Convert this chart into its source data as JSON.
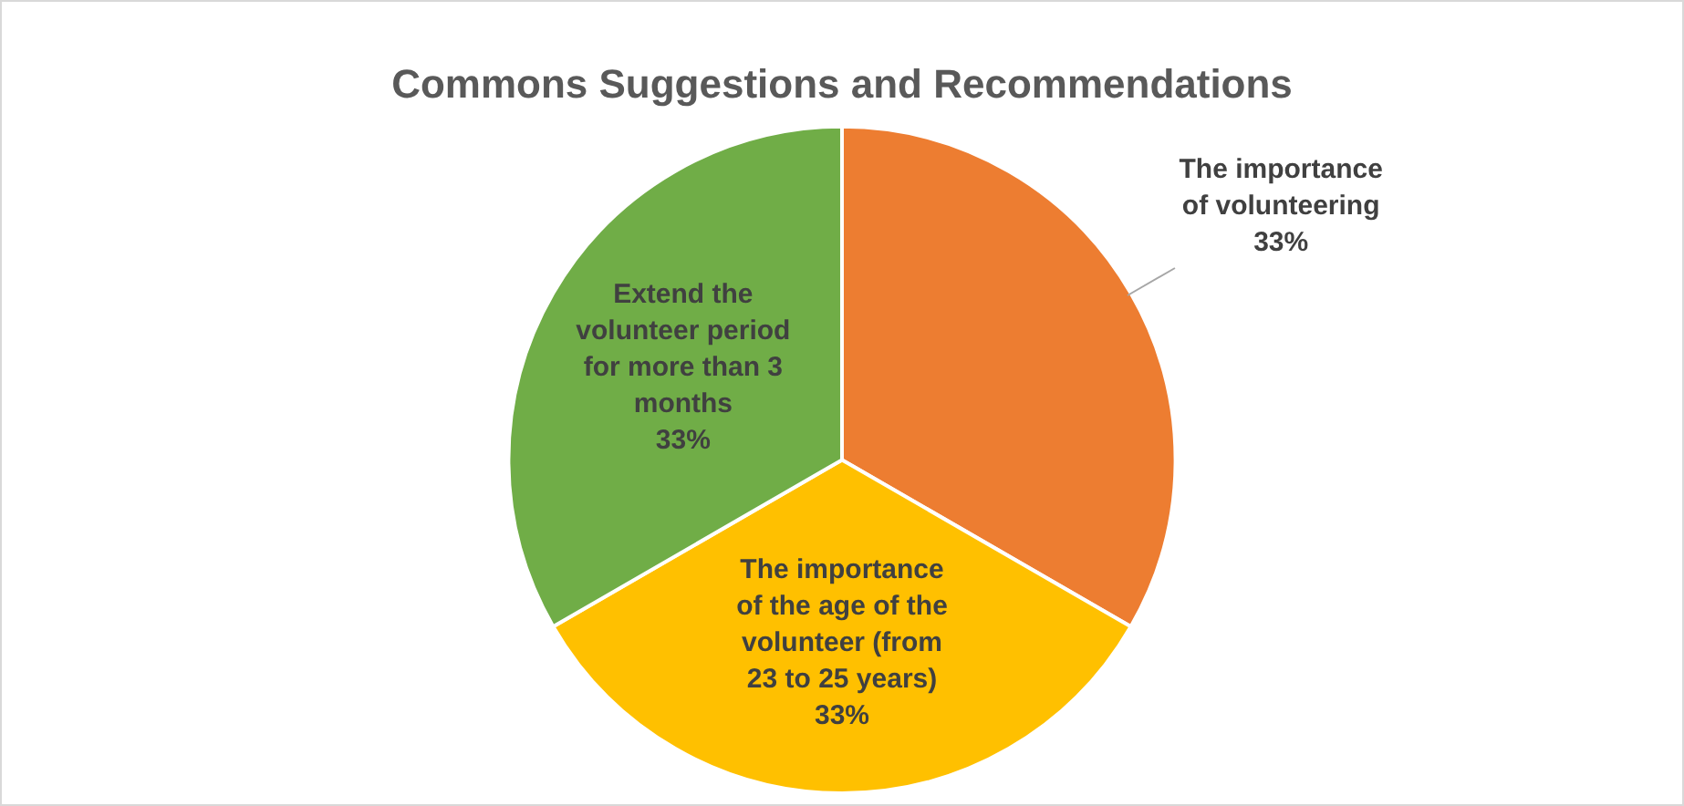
{
  "chart_data": {
    "type": "pie",
    "title": "Commons Suggestions and Recommendations",
    "categories": [
      "The importance of volunteering",
      "The importance of the age of the volunteer (from 23 to 25 years)",
      "Extend the volunteer period for more than 3 months"
    ],
    "values": [
      33,
      33,
      33
    ],
    "colors": [
      "#ed7d31",
      "#ffc000",
      "#70ad47"
    ],
    "value_labels": [
      "33%",
      "33%",
      "33%"
    ],
    "legend": false
  }
}
